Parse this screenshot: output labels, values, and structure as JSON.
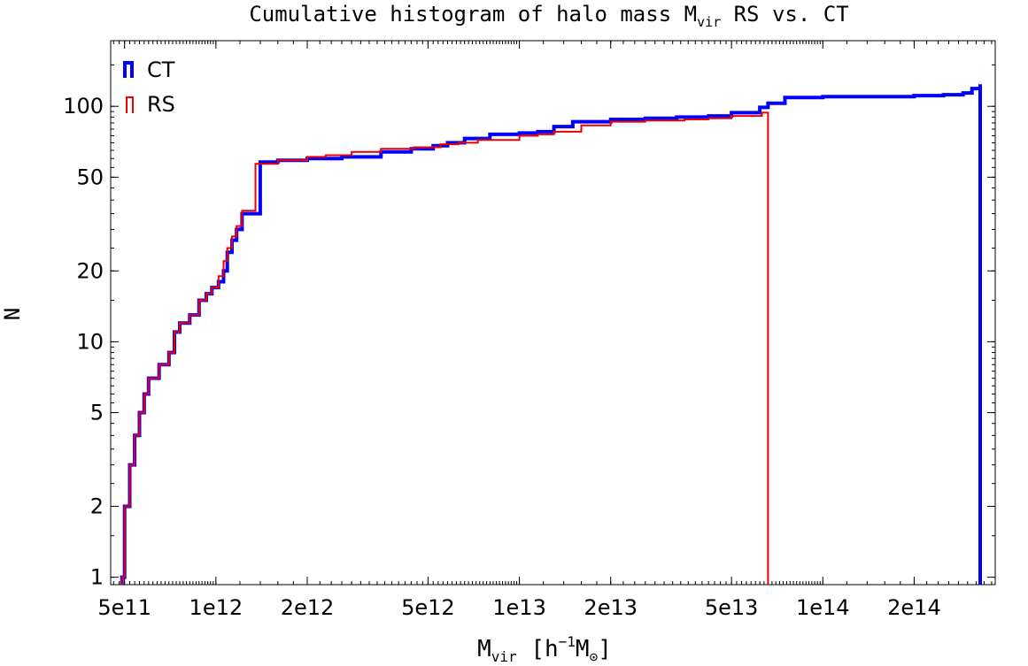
{
  "chart_data": {
    "type": "line",
    "title": "Cumulative histogram of halo mass M",
    "title_sub": "vir",
    "title_suffix": " RS vs. CT",
    "xlabel": "M",
    "xlabel_sub": "vir",
    "xlabel_unit_open": " [h",
    "xlabel_unit_sup": "−1",
    "xlabel_unit_m": "M",
    "xlabel_unit_sun": "⊙",
    "xlabel_unit_close": "]",
    "ylabel": "N",
    "xscale": "log",
    "yscale": "log",
    "xlim": [
      450000000000.0,
      370000000000000.0
    ],
    "ylim": [
      0.93,
      190
    ],
    "x_ticks": [
      {
        "value": 500000000000.0,
        "label": "5e11"
      },
      {
        "value": 1000000000000.0,
        "label": "1e12"
      },
      {
        "value": 2000000000000.0,
        "label": "2e12"
      },
      {
        "value": 5000000000000.0,
        "label": "5e12"
      },
      {
        "value": 10000000000000.0,
        "label": "1e13"
      },
      {
        "value": 20000000000000.0,
        "label": "2e13"
      },
      {
        "value": 50000000000000.0,
        "label": "5e13"
      },
      {
        "value": 100000000000000.0,
        "label": "1e14"
      },
      {
        "value": 200000000000000.0,
        "label": "2e14"
      }
    ],
    "y_ticks": [
      {
        "value": 1,
        "label": "1"
      },
      {
        "value": 2,
        "label": "2"
      },
      {
        "value": 5,
        "label": "5"
      },
      {
        "value": 10,
        "label": "10"
      },
      {
        "value": 20,
        "label": "20"
      },
      {
        "value": 50,
        "label": "50"
      },
      {
        "value": 100,
        "label": "100"
      }
    ],
    "legend": {
      "position": "top-left"
    },
    "series": [
      {
        "name": "CT",
        "color": "#0000ff",
        "x": [
          490000000000.0,
          500000000000.0,
          520000000000.0,
          540000000000.0,
          560000000000.0,
          580000000000.0,
          600000000000.0,
          650000000000.0,
          700000000000.0,
          730000000000.0,
          760000000000.0,
          820000000000.0,
          880000000000.0,
          930000000000.0,
          970000000000.0,
          1020000000000.0,
          1060000000000.0,
          1090000000000.0,
          1130000000000.0,
          1170000000000.0,
          1220000000000.0,
          1400000000000.0,
          1600000000000.0,
          2000000000000.0,
          2600000000000.0,
          3500000000000.0,
          4400000000000.0,
          5200000000000.0,
          5800000000000.0,
          6600000000000.0,
          8000000000000.0,
          10000000000000.0,
          11500000000000.0,
          13000000000000.0,
          15000000000000.0,
          20000000000000.0,
          26000000000000.0,
          33000000000000.0,
          42000000000000.0,
          50000000000000.0,
          62000000000000.0,
          66000000000000.0,
          75000000000000.0,
          100000000000000.0,
          150000000000000.0,
          200000000000000.0,
          250000000000000.0,
          290000000000000.0,
          310000000000000.0,
          330000000000000.0,
          330000000000000.0
        ],
        "y": [
          1,
          2,
          3,
          4,
          5,
          6,
          7,
          8,
          9,
          11,
          12,
          13,
          15,
          16,
          17,
          18,
          20,
          24,
          27,
          30,
          35,
          58,
          59,
          60,
          61,
          64,
          66,
          68,
          70,
          73,
          76,
          77,
          78,
          82,
          86,
          88,
          89,
          90,
          91,
          94,
          99,
          103,
          109,
          110,
          110,
          111,
          112,
          114,
          119,
          124,
          0.93
        ]
      },
      {
        "name": "RS",
        "color": "#ee0000",
        "x": [
          490000000000.0,
          500000000000.0,
          520000000000.0,
          540000000000.0,
          560000000000.0,
          580000000000.0,
          600000000000.0,
          650000000000.0,
          700000000000.0,
          730000000000.0,
          760000000000.0,
          820000000000.0,
          880000000000.0,
          930000000000.0,
          970000000000.0,
          1020000000000.0,
          1060000000000.0,
          1090000000000.0,
          1130000000000.0,
          1170000000000.0,
          1220000000000.0,
          1350000000000.0,
          1600000000000.0,
          2000000000000.0,
          2300000000000.0,
          2800000000000.0,
          3500000000000.0,
          4500000000000.0,
          5500000000000.0,
          6300000000000.0,
          7300000000000.0,
          10000000000000.0,
          11500000000000.0,
          13000000000000.0,
          16000000000000.0,
          20000000000000.0,
          26000000000000.0,
          35000000000000.0,
          42000000000000.0,
          50000000000000.0,
          63000000000000.0,
          66000000000000.0
        ],
        "y": [
          1,
          2,
          3,
          4,
          5,
          6,
          7,
          8,
          9,
          11,
          12,
          13,
          15,
          16,
          17,
          19,
          22,
          25,
          28,
          31,
          36,
          57,
          59,
          61,
          62,
          64,
          66,
          67,
          69,
          70,
          72,
          75,
          76,
          78,
          83,
          86,
          87,
          88,
          89,
          91,
          94,
          0.93
        ]
      }
    ]
  }
}
